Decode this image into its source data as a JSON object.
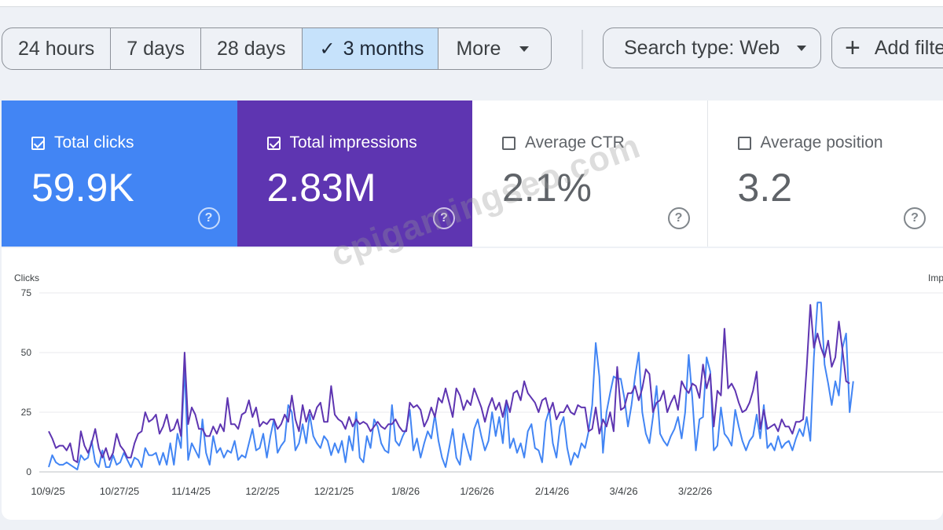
{
  "date_range": {
    "options": [
      "24 hours",
      "7 days",
      "28 days",
      "3 months"
    ],
    "selected": "3 months",
    "more_label": "More"
  },
  "search_type_label": "Search type: Web",
  "add_filter_label": "Add filte",
  "metrics": {
    "clicks": {
      "label": "Total clicks",
      "value": "59.9K",
      "checked": true
    },
    "impressions": {
      "label": "Total impressions",
      "value": "2.83M",
      "checked": true
    },
    "ctr": {
      "label": "Average CTR",
      "value": "2.1%",
      "checked": false
    },
    "position": {
      "label": "Average position",
      "value": "3.2",
      "checked": false
    }
  },
  "watermark": "cpigamingseo.com",
  "colors": {
    "clicks": "#4285f4",
    "impressions": "#5e35b1"
  },
  "chart_data": {
    "type": "line",
    "ylabel_left": "Clicks",
    "ylabel_right": "Imp",
    "yticks": [
      0,
      25,
      50,
      75
    ],
    "ylim": [
      0,
      75
    ],
    "xtick_labels": [
      "10/9/25",
      "10/27/25",
      "11/14/25",
      "12/2/25",
      "12/21/25",
      "1/8/26",
      "1/26/26",
      "2/14/26",
      "3/4/26",
      "3/22/26"
    ],
    "series": [
      {
        "name": "Clicks",
        "color": "#4285f4",
        "values": [
          2,
          7,
          4,
          3,
          3,
          4,
          3,
          2,
          1,
          7,
          5,
          6,
          13,
          4,
          2,
          9,
          2,
          2,
          7,
          3,
          4,
          8,
          5,
          2,
          6,
          5,
          2,
          10,
          7,
          7,
          8,
          3,
          8,
          3,
          12,
          3,
          16,
          10,
          44,
          5,
          12,
          9,
          6,
          22,
          8,
          3,
          15,
          8,
          10,
          6,
          9,
          8,
          13,
          5,
          7,
          6,
          12,
          18,
          9,
          10,
          16,
          6,
          15,
          22,
          8,
          11,
          13,
          28,
          25,
          9,
          12,
          20,
          12,
          24,
          15,
          12,
          10,
          15,
          13,
          7,
          12,
          8,
          13,
          4,
          15,
          9,
          25,
          6,
          4,
          15,
          10,
          22,
          19,
          12,
          9,
          8,
          28,
          13,
          11,
          15,
          18,
          26,
          9,
          14,
          6,
          12,
          17,
          14,
          24,
          13,
          6,
          2,
          10,
          18,
          6,
          3,
          16,
          10,
          5,
          18,
          22,
          15,
          9,
          13,
          25,
          15,
          23,
          12,
          30,
          10,
          14,
          8,
          12,
          6,
          17,
          20,
          10,
          9,
          4,
          21,
          26,
          12,
          6,
          19,
          23,
          10,
          3,
          8,
          6,
          12,
          10,
          17,
          28,
          54,
          40,
          8,
          25,
          33,
          40,
          39,
          39,
          31,
          19,
          28,
          40,
          50,
          25,
          16,
          12,
          23,
          36,
          16,
          13,
          11,
          15,
          18,
          23,
          14,
          25,
          49,
          31,
          9,
          22,
          23,
          48,
          42,
          9,
          11,
          27,
          16,
          14,
          11,
          26,
          19,
          13,
          9,
          13,
          15,
          24,
          14,
          28,
          10,
          12,
          9,
          15,
          10,
          12,
          13,
          9,
          14,
          18,
          15,
          23,
          13,
          48,
          71,
          71,
          45,
          37,
          28,
          38,
          32,
          52,
          58,
          25,
          38
        ]
      },
      {
        "name": "Impressions",
        "color": "#5e35b1",
        "values": [
          17,
          14,
          10,
          11,
          11,
          9,
          12,
          5,
          4,
          17,
          11,
          8,
          12,
          18,
          10,
          6,
          10,
          5,
          8,
          16,
          11,
          9,
          6,
          6,
          12,
          16,
          17,
          25,
          21,
          22,
          24,
          16,
          19,
          24,
          17,
          18,
          22,
          15,
          50,
          20,
          27,
          24,
          18,
          18,
          15,
          15,
          19,
          16,
          20,
          17,
          31,
          20,
          20,
          18,
          24,
          25,
          30,
          23,
          27,
          19,
          21,
          20,
          22,
          22,
          18,
          20,
          24,
          21,
          32,
          22,
          17,
          28,
          21,
          26,
          22,
          27,
          29,
          21,
          21,
          36,
          24,
          22,
          21,
          18,
          23,
          19,
          22,
          20,
          21,
          20,
          17,
          19,
          21,
          19,
          18,
          20,
          20,
          22,
          19,
          17,
          17,
          29,
          27,
          28,
          26,
          19,
          22,
          27,
          23,
          31,
          29,
          35,
          29,
          23,
          35,
          32,
          26,
          30,
          28,
          35,
          31,
          27,
          21,
          27,
          31,
          26,
          29,
          23,
          30,
          25,
          33,
          34,
          30,
          38,
          33,
          31,
          29,
          25,
          30,
          31,
          25,
          29,
          22,
          25,
          25,
          28,
          25,
          24,
          28,
          27,
          27,
          17,
          18,
          27,
          16,
          22,
          19,
          25,
          17,
          44,
          26,
          27,
          33,
          33,
          36,
          30,
          35,
          43,
          41,
          25,
          29,
          30,
          34,
          25,
          29,
          32,
          26,
          38,
          35,
          33,
          37,
          36,
          31,
          45,
          35,
          41,
          19,
          34,
          32,
          60,
          35,
          37,
          34,
          29,
          25,
          26,
          29,
          34,
          42,
          18,
          26,
          18,
          19,
          20,
          17,
          22,
          19,
          19,
          16,
          21,
          21,
          22,
          44,
          70,
          52,
          58,
          52,
          48,
          55,
          44,
          48,
          63,
          51,
          38,
          37
        ]
      }
    ]
  }
}
